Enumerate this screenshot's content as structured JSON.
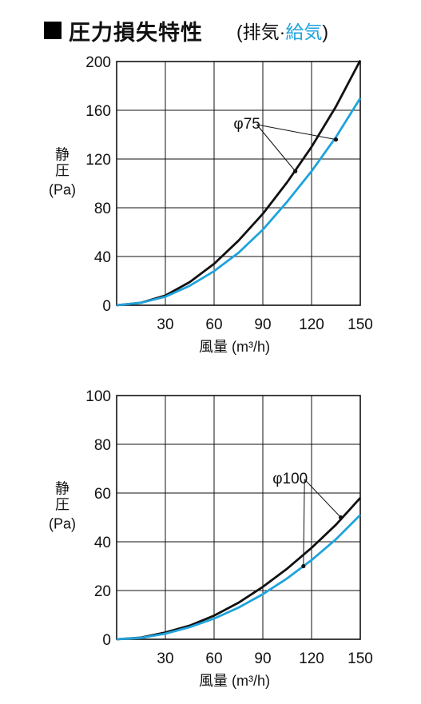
{
  "header": {
    "title": "圧力損失特性",
    "paren_open": "(",
    "exhaust": "排気",
    "separator": "·",
    "supply": "給気",
    "paren_close": ")"
  },
  "colors": {
    "exhaust": "#111111",
    "supply": "#1fa3dc",
    "grid": "#111111"
  },
  "chart_data": [
    {
      "type": "line",
      "xlabel": "風量 (m³/h)",
      "ylabel": "静圧 (Pa)",
      "xlim": [
        0,
        150
      ],
      "ylim": [
        0,
        200
      ],
      "xticks": [
        30,
        60,
        90,
        120,
        150
      ],
      "yticks": [
        0,
        40,
        80,
        120,
        160,
        200
      ],
      "grid": true,
      "annotation": {
        "text": "φ75",
        "x": 72,
        "y": 145,
        "targets": [
          {
            "series": "exhaust",
            "x": 110,
            "y": 110
          },
          {
            "series": "supply",
            "x": 135,
            "y": 136
          }
        ]
      },
      "series": [
        {
          "key": "exhaust",
          "x": [
            0,
            15,
            30,
            45,
            60,
            75,
            90,
            105,
            120,
            135,
            150
          ],
          "y": [
            0,
            2,
            8,
            19,
            34,
            53,
            75,
            101,
            130,
            163,
            201
          ]
        },
        {
          "key": "supply",
          "x": [
            0,
            15,
            30,
            45,
            60,
            75,
            90,
            105,
            120,
            135,
            150
          ],
          "y": [
            0,
            2,
            7,
            16,
            28,
            43,
            62,
            85,
            110,
            138,
            170
          ]
        }
      ]
    },
    {
      "type": "line",
      "xlabel": "風量 (m³/h)",
      "ylabel": "静圧 (Pa)",
      "xlim": [
        0,
        150
      ],
      "ylim": [
        0,
        100
      ],
      "xticks": [
        30,
        60,
        90,
        120,
        150
      ],
      "yticks": [
        0,
        20,
        40,
        60,
        80,
        100
      ],
      "grid": true,
      "annotation": {
        "text": "φ100",
        "x": 96,
        "y": 64,
        "targets": [
          {
            "series": "exhaust",
            "x": 138,
            "y": 50
          },
          {
            "series": "supply",
            "x": 115,
            "y": 30
          }
        ]
      },
      "series": [
        {
          "key": "exhaust",
          "x": [
            0,
            15,
            30,
            45,
            60,
            75,
            90,
            105,
            120,
            135,
            150
          ],
          "y": [
            0,
            0.7,
            2.8,
            5.6,
            9.7,
            15,
            21.5,
            29,
            37.5,
            47,
            58
          ]
        },
        {
          "key": "supply",
          "x": [
            0,
            15,
            30,
            45,
            60,
            75,
            90,
            105,
            120,
            135,
            150
          ],
          "y": [
            0,
            0.6,
            2.3,
            5,
            8.5,
            13,
            18.5,
            25,
            32.5,
            41,
            51
          ]
        }
      ]
    }
  ]
}
